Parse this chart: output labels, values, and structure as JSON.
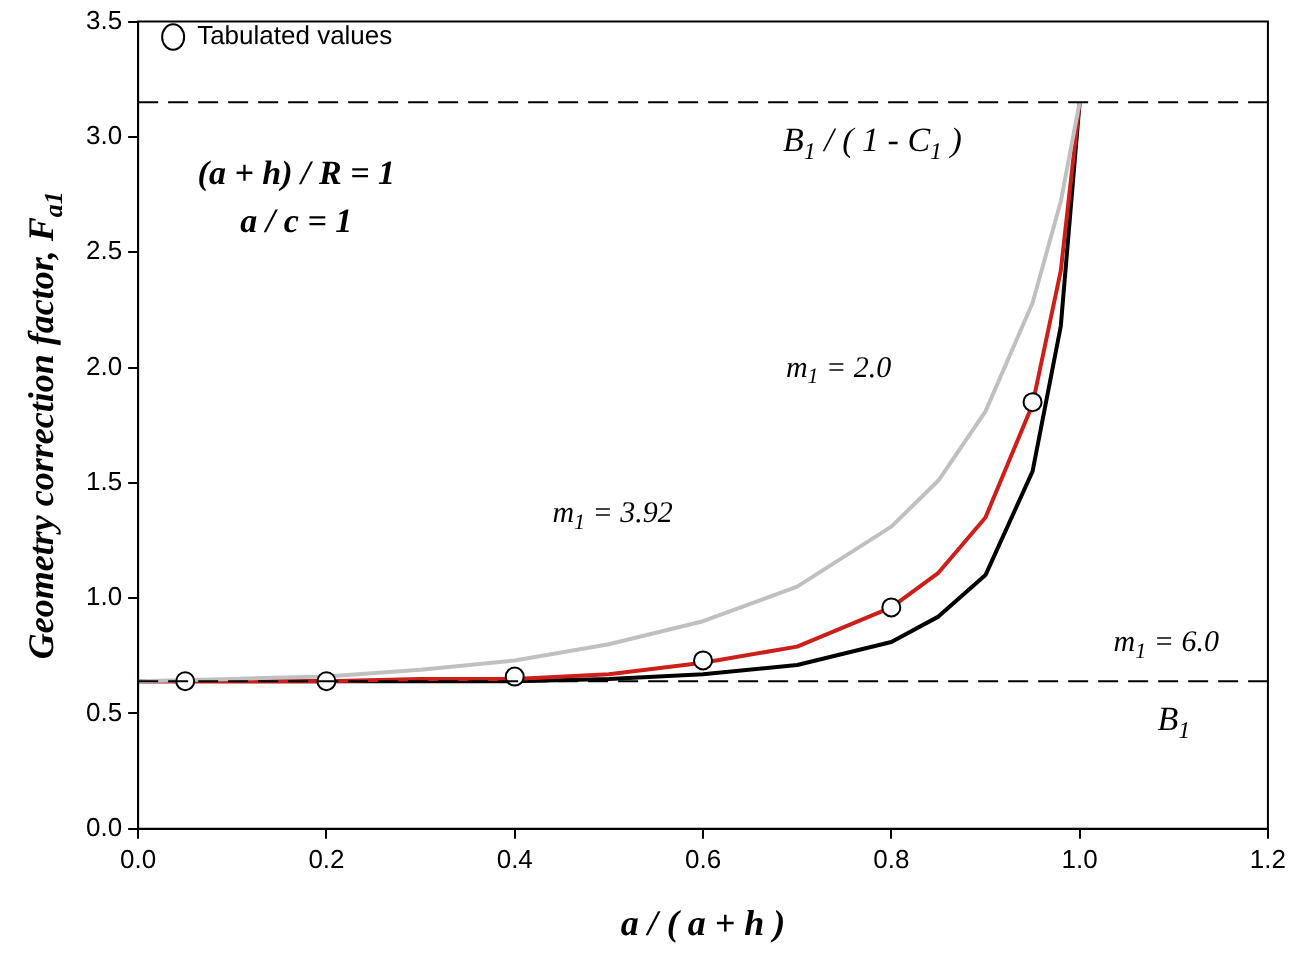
{
  "chart_data": {
    "type": "line",
    "xlabel": "a / ( a + h )",
    "ylabel": "Geometry correction factor, F$_{a1}$",
    "xlim": [
      0,
      1.2
    ],
    "xticks": [
      {
        "value": 0,
        "label": "0.0"
      },
      {
        "value": 0.2,
        "label": "0.2"
      },
      {
        "value": 0.4,
        "label": "0.4"
      },
      {
        "value": 0.6,
        "label": "0.6"
      },
      {
        "value": 0.8,
        "label": "0.8"
      },
      {
        "value": 1,
        "label": "1.0"
      },
      {
        "value": 1.2,
        "label": "1.2"
      }
    ],
    "ylim": [
      0,
      3.5
    ],
    "yticks": [
      {
        "value": 0,
        "label": "0.0"
      },
      {
        "value": 0.5,
        "label": "0.5"
      },
      {
        "value": 1,
        "label": "1.0"
      },
      {
        "value": 1.5,
        "label": "1.5"
      },
      {
        "value": 2,
        "label": "2.0"
      },
      {
        "value": 2.5,
        "label": "2.5"
      },
      {
        "value": 3,
        "label": "3.0"
      },
      {
        "value": 3.5,
        "label": "3.5"
      }
    ],
    "grid": false,
    "legend": "top left",
    "line_style": "solid",
    "series": [
      {
        "color": "#c0c0c0",
        "x": [
          0,
          0.1,
          0.2,
          0.3,
          0.4,
          0.5,
          0.6,
          0.7,
          0.8,
          0.85,
          0.9,
          0.95,
          0.98,
          1.0
        ],
        "values": [
          0.64,
          0.65,
          0.66,
          0.69,
          0.73,
          0.8,
          0.9,
          1.05,
          1.31,
          1.51,
          1.81,
          2.28,
          2.72,
          3.15
        ]
      },
      {
        "color": "#cc1f1a",
        "x": [
          0,
          0.1,
          0.2,
          0.3,
          0.4,
          0.5,
          0.6,
          0.7,
          0.8,
          0.85,
          0.9,
          0.95,
          0.98,
          1.0
        ],
        "values": [
          0.64,
          0.64,
          0.64,
          0.65,
          0.65,
          0.67,
          0.72,
          0.79,
          0.96,
          1.11,
          1.35,
          1.84,
          2.42,
          3.15
        ]
      },
      {
        "color": "#000000",
        "x": [
          0,
          0.1,
          0.2,
          0.3,
          0.4,
          0.5,
          0.6,
          0.7,
          0.8,
          0.85,
          0.9,
          0.95,
          0.98,
          1.0
        ],
        "values": [
          0.64,
          0.64,
          0.64,
          0.64,
          0.64,
          0.65,
          0.67,
          0.71,
          0.81,
          0.92,
          1.1,
          1.55,
          2.18,
          3.15
        ]
      },
      {
        "type": "scatter",
        "name": "Tabulated values",
        "color": "#000000",
        "marker": "circle",
        "x": [
          0.05,
          0.2,
          0.4,
          0.6,
          0.8,
          0.95
        ],
        "values": [
          0.64,
          0.64,
          0.66,
          0.73,
          0.96,
          1.85
        ]
      }
    ],
    "ref_lines": [
      {
        "axis": "y",
        "value": 3.15,
        "label": "B$_{1}$ / ( 1 - C$_{1}$ )",
        "line_style": "dashed",
        "color": "#000000"
      },
      {
        "axis": "y",
        "value": 0.64,
        "label": "B$_{1}$",
        "line_style": "dashed",
        "color": "#000000"
      }
    ],
    "annotations": [
      "(a + h) / R = 1",
      "a / c = 1",
      "m$_{1}$ = 2.0",
      "m$_{1}$ = 3.92",
      "m$_{1}$ = 6.0"
    ]
  }
}
